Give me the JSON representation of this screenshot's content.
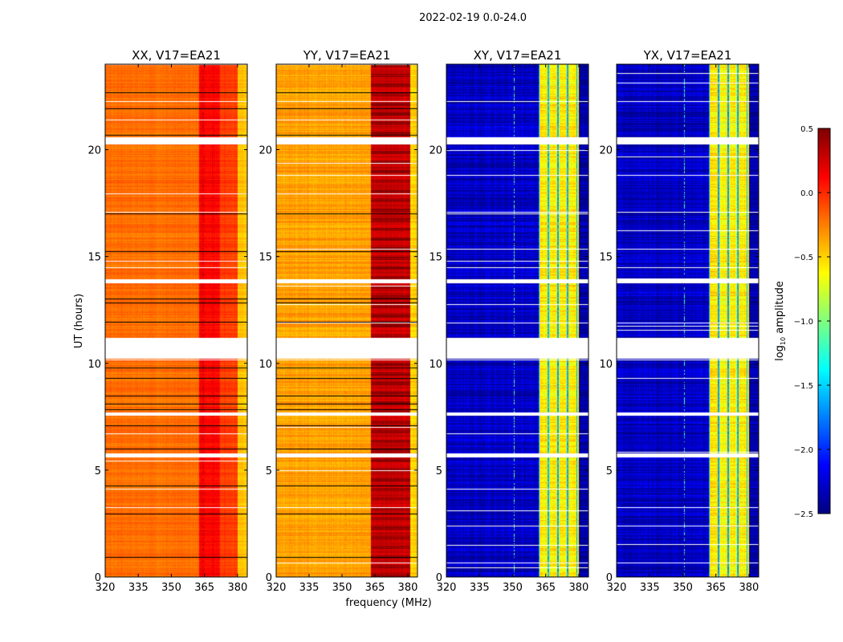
{
  "chart_data": {
    "type": "heatmap",
    "title": "2022-02-19 0.0-24.0",
    "xlabel": "frequency (MHz)",
    "ylabel": "UT (hours)",
    "colorbar_label_main": "log",
    "colorbar_label_sub": "10",
    "colorbar_label_rest": " amplitude",
    "colorbar_range": [
      -2.5,
      0.5
    ],
    "colorbar_ticks": [
      "0.5",
      "0.0",
      "−0.5",
      "−1.0",
      "−1.5",
      "−2.0",
      "−2.5"
    ],
    "colorbar_tick_values": [
      0.5,
      0.0,
      -0.5,
      -1.0,
      -1.5,
      -2.0,
      -2.5
    ],
    "colormap": "jet",
    "xlim": [
      320,
      384.4
    ],
    "ylim": [
      0,
      24
    ],
    "xticks": [
      320,
      335,
      350,
      365,
      380
    ],
    "yticks": [
      0,
      5,
      10,
      15,
      20
    ],
    "flagged_hours": [
      [
        20.25,
        20.6
      ],
      [
        10.25,
        11.2
      ],
      [
        13.75,
        13.95
      ],
      [
        7.55,
        7.7
      ],
      [
        5.6,
        5.8
      ]
    ],
    "black_lines_hours": [
      0.95,
      2.95,
      4.3,
      6.0,
      7.1,
      7.85,
      8.1,
      8.5,
      9.3,
      9.8,
      11.95,
      12.85,
      13.05,
      15.25,
      17.0,
      20.7,
      21.95,
      22.7
    ],
    "panels": [
      {
        "title": "XX, V17=EA21",
        "base": -0.2,
        "band": [
          [
            362.5,
            372,
            0.12
          ],
          [
            372,
            380,
            -0.05
          ],
          [
            380,
            384.4,
            -0.45
          ]
        ],
        "spike_freqs": [
          364.3,
          368.4
        ],
        "noise": 0.06
      },
      {
        "title": "YY, V17=EA21",
        "base": -0.35,
        "band": [
          [
            363,
            381,
            0.28
          ],
          [
            381,
            384.4,
            -0.5
          ]
        ],
        "spike_freqs": [
          351.5
        ],
        "noise": 0.08
      },
      {
        "title": "XY, V17=EA21",
        "base": -2.3,
        "band": [
          [
            361.5,
            380,
            -0.6
          ],
          [
            380,
            384.4,
            -2.4
          ]
        ],
        "spike_freqs": [
          350.5
        ],
        "noise": 0.15
      },
      {
        "title": "YX, V17=EA21",
        "base": -2.3,
        "band": [
          [
            361.5,
            380,
            -0.6
          ],
          [
            380,
            384.4,
            -2.4
          ]
        ],
        "spike_freqs": [
          350.5
        ],
        "noise": 0.15
      }
    ]
  }
}
